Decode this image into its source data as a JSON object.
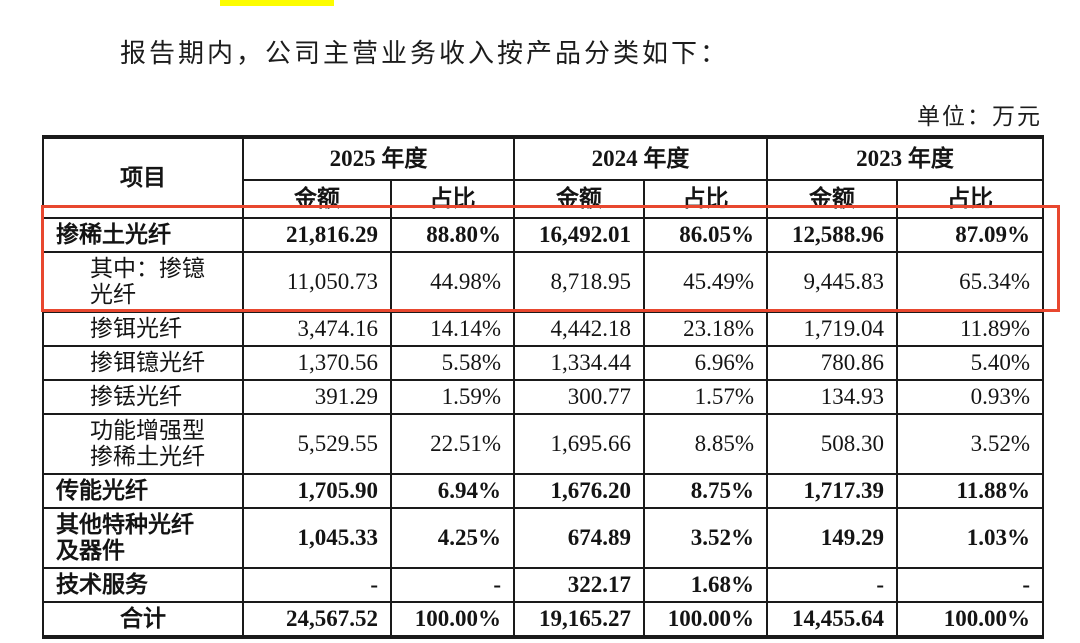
{
  "page": {
    "intro_text": "报告期内，公司主营业务收入按产品分类如下：",
    "unit_label": "单位：万元"
  },
  "table": {
    "header": {
      "item_label": "项目",
      "year_groups": [
        "2025 年度",
        "2024 年度",
        "2023 年度"
      ],
      "amount_label": "金额",
      "ratio_label": "占比"
    },
    "rows": [
      {
        "name": "掺稀土光纤",
        "bold": true,
        "level": 1,
        "values": [
          "21,816.29",
          "88.80%",
          "16,492.01",
          "86.05%",
          "12,588.96",
          "87.09%"
        ]
      },
      {
        "name": "其中：掺镱\n光纤",
        "bold": false,
        "level": 2,
        "values": [
          "11,050.73",
          "44.98%",
          "8,718.95",
          "45.49%",
          "9,445.83",
          "65.34%"
        ]
      },
      {
        "name": "掺铒光纤",
        "bold": false,
        "level": 2,
        "values": [
          "3,474.16",
          "14.14%",
          "4,442.18",
          "23.18%",
          "1,719.04",
          "11.89%"
        ]
      },
      {
        "name": "掺铒镱光纤",
        "bold": false,
        "level": 2,
        "values": [
          "1,370.56",
          "5.58%",
          "1,334.44",
          "6.96%",
          "780.86",
          "5.40%"
        ]
      },
      {
        "name": "掺铥光纤",
        "bold": false,
        "level": 2,
        "values": [
          "391.29",
          "1.59%",
          "300.77",
          "1.57%",
          "134.93",
          "0.93%"
        ]
      },
      {
        "name": "功能增强型\n掺稀土光纤",
        "bold": false,
        "level": 2,
        "values": [
          "5,529.55",
          "22.51%",
          "1,695.66",
          "8.85%",
          "508.30",
          "3.52%"
        ]
      },
      {
        "name": "传能光纤",
        "bold": true,
        "level": 1,
        "values": [
          "1,705.90",
          "6.94%",
          "1,676.20",
          "8.75%",
          "1,717.39",
          "11.88%"
        ]
      },
      {
        "name": "其他特种光纤\n及器件",
        "bold": true,
        "level": 1,
        "values": [
          "1,045.33",
          "4.25%",
          "674.89",
          "3.52%",
          "149.29",
          "1.03%"
        ]
      },
      {
        "name": "技术服务",
        "bold": true,
        "level": 1,
        "values": [
          "-",
          "-",
          "322.17",
          "1.68%",
          "-",
          "-"
        ]
      },
      {
        "name": "合计",
        "bold": true,
        "level": 1,
        "align": "center",
        "values": [
          "24,567.52",
          "100.00%",
          "19,165.27",
          "100.00%",
          "14,455.64",
          "100.00%"
        ]
      }
    ]
  },
  "annotations": {
    "red_box_color": "#e8472f",
    "yellow_highlight_color": "#fdfd00"
  }
}
